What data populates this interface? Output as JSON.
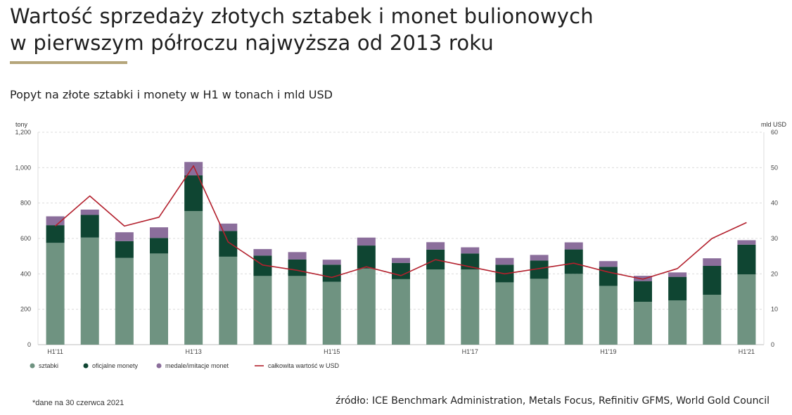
{
  "header": {
    "title_line1": "Wartość sprzedaży złotych sztabek i monet bulionowych",
    "title_line2": "w pierwszym półroczu najwyższa od 2013 roku",
    "subtitle": "Popyt na złote sztabki i monety w H1 w tonach i mld USD"
  },
  "footer": {
    "note": "*dane na 30 czerwca 2021",
    "source": "źródło: ICE Benchmark Administration, Metals Focus, Refinitiv GFMS, World Gold Council"
  },
  "chart_data": {
    "type": "bar",
    "stacked": true,
    "ylabel": "tony",
    "ylabel_right": "mld USD",
    "ylim": [
      0,
      1200
    ],
    "ylim_right": [
      0,
      60
    ],
    "yticks": [
      0,
      200,
      400,
      600,
      800,
      1000,
      1200
    ],
    "yticks_labels": [
      "0",
      "200",
      "400",
      "600",
      "800",
      "1,000",
      "1,200"
    ],
    "yticks_right": [
      0,
      10,
      20,
      30,
      40,
      50,
      60
    ],
    "x_tick_labels": [
      "H1'11",
      "",
      "",
      "",
      "H1'13",
      "",
      "",
      "",
      "H1'15",
      "",
      "",
      "",
      "H1'17",
      "",
      "",
      "",
      "H1'19",
      "",
      "",
      "",
      "H1'21"
    ],
    "grid": true,
    "legend_position": "bottom",
    "series": [
      {
        "name": "sztabki",
        "color": "#6f9381",
        "values": [
          575,
          605,
          490,
          515,
          755,
          497,
          388,
          388,
          355,
          430,
          370,
          425,
          425,
          352,
          372,
          400,
          332,
          242,
          250,
          282,
          397
        ]
      },
      {
        "name": "oficjalne monety",
        "color": "#0f4532",
        "values": [
          100,
          128,
          95,
          88,
          202,
          145,
          115,
          93,
          97,
          130,
          92,
          112,
          90,
          100,
          103,
          138,
          108,
          117,
          133,
          163,
          168
        ]
      },
      {
        "name": "medale/imitacje monet",
        "color": "#8b6e9b",
        "values": [
          50,
          30,
          50,
          60,
          75,
          42,
          37,
          42,
          28,
          45,
          28,
          42,
          35,
          38,
          32,
          40,
          32,
          30,
          25,
          43,
          25
        ]
      }
    ],
    "line": {
      "name": "całkowita wartość w USD",
      "color": "#b3202d",
      "axis": "right",
      "values": [
        33.5,
        42,
        33.5,
        36,
        50.5,
        29,
        22.5,
        21,
        19,
        22,
        19.5,
        24,
        22,
        20,
        21.5,
        23,
        20.5,
        18.5,
        21.5,
        30,
        34.5
      ]
    }
  }
}
